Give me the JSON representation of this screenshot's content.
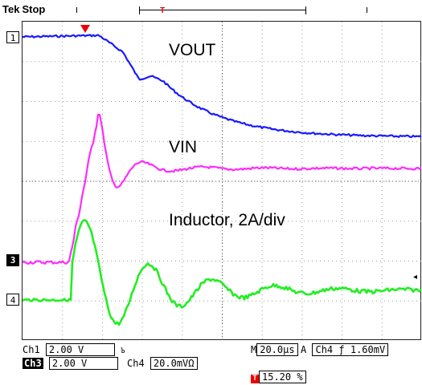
{
  "header": {
    "brand": "Tek",
    "run_state": "Stop",
    "trigger_position_glyph": "T"
  },
  "traces": [
    {
      "id": "vout",
      "label": "VOUT",
      "color": "#1a1aff"
    },
    {
      "id": "vin",
      "label": "VIN",
      "color": "#ff2bff"
    },
    {
      "id": "inductor",
      "label": "Inductor, 2A/div",
      "color": "#22ee22"
    }
  ],
  "channel_markers": {
    "ch1": "1",
    "ch3": "3",
    "ch4": "4"
  },
  "readout": {
    "ch1_name": "Ch1",
    "ch1_scale": "2.00 V",
    "ch1_bw": "Ъ",
    "ch3_name": "Ch3",
    "ch3_scale": "2.00 V",
    "ch4_name": "Ch4",
    "ch4_scale": "20.0mVΩ",
    "timebase_prefix": "M",
    "timebase": "20.0µs",
    "trigger_mode": "A",
    "trigger_source": "Ch4",
    "trigger_slope": "ƒ",
    "trigger_level": "1.60mV",
    "trigger_badge": "T",
    "trigger_percent": "15.20 %"
  }
}
